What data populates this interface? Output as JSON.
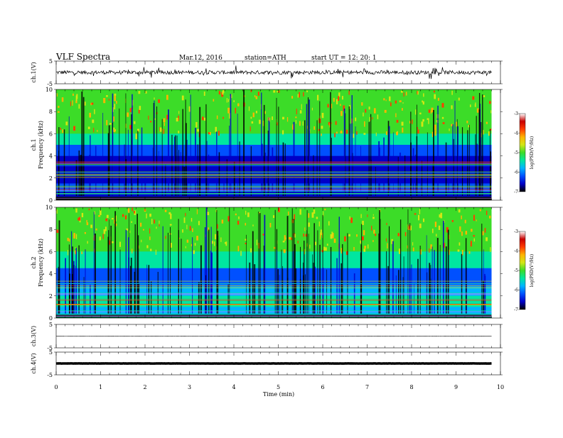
{
  "header": {
    "title": "VLF  Spectra",
    "date": "Mar.12, 2016",
    "station": "station=ATH",
    "start_ut": "start  UT  =     12: 20: 1"
  },
  "chart_data": [
    {
      "type": "line",
      "name": "ch1-waveform",
      "ylabel": "ch.1(V)",
      "ylim": [
        -5,
        5
      ],
      "y_ticks": [
        "5",
        "-5"
      ],
      "baseline": 0,
      "amplitude": 1.2
    },
    {
      "type": "heatmap",
      "name": "ch1-spectrogram",
      "ylabel_channel": "ch.1",
      "ylabel": "Frequency  (kHz)",
      "ylim": [
        0,
        10
      ],
      "y_ticks": [
        "0",
        "2",
        "4",
        "6",
        "8",
        "10"
      ],
      "colorbar": {
        "label": "log(PSD(V²/Hz)",
        "range": [
          -7,
          -3
        ],
        "ticks": [
          "-3",
          "-4",
          "-5",
          "-6",
          "-7"
        ],
        "colors": [
          "#000000",
          "#0000c8",
          "#0050ff",
          "#00b4ff",
          "#00e6a0",
          "#3cdc28",
          "#d2e614",
          "#ffb400",
          "#ff3c00",
          "#c80000",
          "#ffffff"
        ]
      }
    },
    {
      "type": "heatmap",
      "name": "ch2-spectrogram",
      "ylabel_channel": "ch.2",
      "ylabel": "Frequency  (kHz)",
      "ylim": [
        0,
        10
      ],
      "y_ticks": [
        "0",
        "2",
        "4",
        "6",
        "8",
        "10"
      ],
      "colorbar": {
        "label": "log(PSD(V²/Hz)",
        "range": [
          -7,
          -3
        ],
        "ticks": [
          "-3",
          "-4",
          "-5",
          "-6",
          "-7"
        ],
        "colors": [
          "#000000",
          "#0000c8",
          "#0050ff",
          "#00b4ff",
          "#00e6a0",
          "#3cdc28",
          "#d2e614",
          "#ffb400",
          "#ff3c00",
          "#c80000",
          "#ffffff"
        ]
      }
    },
    {
      "type": "line",
      "name": "ch3-waveform",
      "ylabel": "ch.3(V)",
      "ylim": [
        -5,
        5
      ],
      "y_ticks": [
        "5",
        "-5"
      ],
      "baseline": 0,
      "amplitude": 0.1
    },
    {
      "type": "line",
      "name": "ch4-waveform",
      "ylabel": "ch.4(V)",
      "ylim": [
        -5,
        5
      ],
      "y_ticks": [
        "5",
        "-5"
      ],
      "baseline": 0,
      "amplitude": 0.05
    }
  ],
  "x_axis": {
    "label": "Time  (min)",
    "range": [
      0,
      10
    ],
    "data_end": 9.8,
    "ticks": [
      "0",
      "1",
      "2",
      "3",
      "4",
      "5",
      "6",
      "7",
      "8",
      "9",
      "10"
    ]
  }
}
